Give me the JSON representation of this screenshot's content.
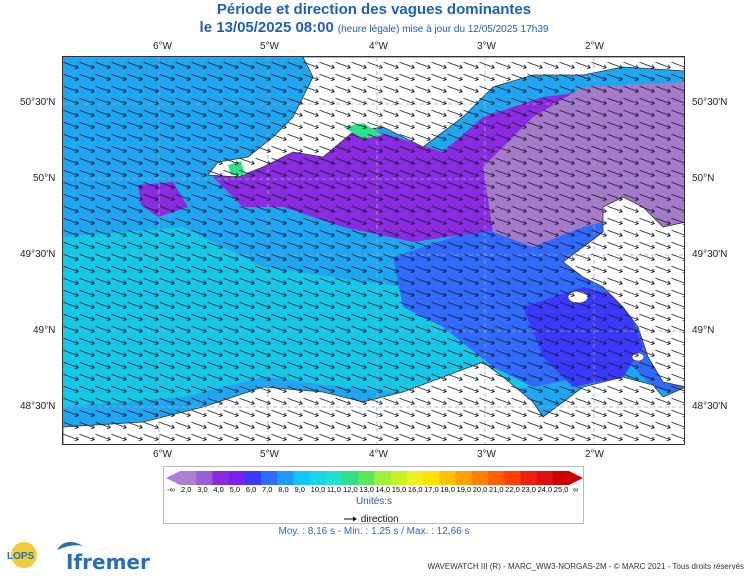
{
  "header": {
    "title": "Période et direction des vagues dominantes",
    "date": "le 13/05/2025 08:00",
    "update_note": "(heure légale) mise à jour du 12/05/2025 17h39"
  },
  "map": {
    "lon_labels": [
      "6°W",
      "5°W",
      "4°W",
      "3°W",
      "2°W"
    ],
    "lat_labels": [
      "50°30'N",
      "50°N",
      "49°30'N",
      "49°N",
      "48°30'N"
    ],
    "extent": {
      "lon": [
        -6.9,
        -1.2
      ],
      "lat": [
        48.2,
        50.78
      ]
    },
    "wave_direction_deg_towards": 110,
    "land_color": "#ffffff"
  },
  "colorbar": {
    "units": "Unités:s",
    "labels": [
      "2,0",
      "3,0",
      "4,0",
      "5,0",
      "6,0",
      "7,0",
      "8,0",
      "9,0",
      "10,0",
      "11,0",
      "12,0",
      "13,0",
      "14,0",
      "15,0",
      "16,0",
      "17,0",
      "18,0",
      "19,0",
      "20,0",
      "21,0",
      "22,0",
      "23,0",
      "24,0",
      "25,0"
    ],
    "left_symbol": "-∞",
    "right_symbol": "∞",
    "colors": [
      "#b07fd0",
      "#9a5fd8",
      "#8a2be2",
      "#7a1ff0",
      "#3a3aff",
      "#2f6bff",
      "#1f9bff",
      "#0fc6ff",
      "#17d6e8",
      "#20e0d0",
      "#2ee08a",
      "#5ae85a",
      "#9ef03a",
      "#c8f020",
      "#f0f020",
      "#ffe000",
      "#ffc000",
      "#ffa000",
      "#ff8000",
      "#ff6000",
      "#ff4000",
      "#f02010",
      "#e01010",
      "#d00000"
    ]
  },
  "legend": {
    "direction_label": "direction"
  },
  "stats": "Moy. : 8,16 s   -   Min. : 1,25 s / Max. : 12,66 s",
  "footer": "WAVEWATCH III (R) - MARC_WW3-NORGAS-2M - © MARC 2021 - Tous droits réservés",
  "logos": {
    "lops": "LOPS",
    "ifremer": "Ifremer"
  }
}
